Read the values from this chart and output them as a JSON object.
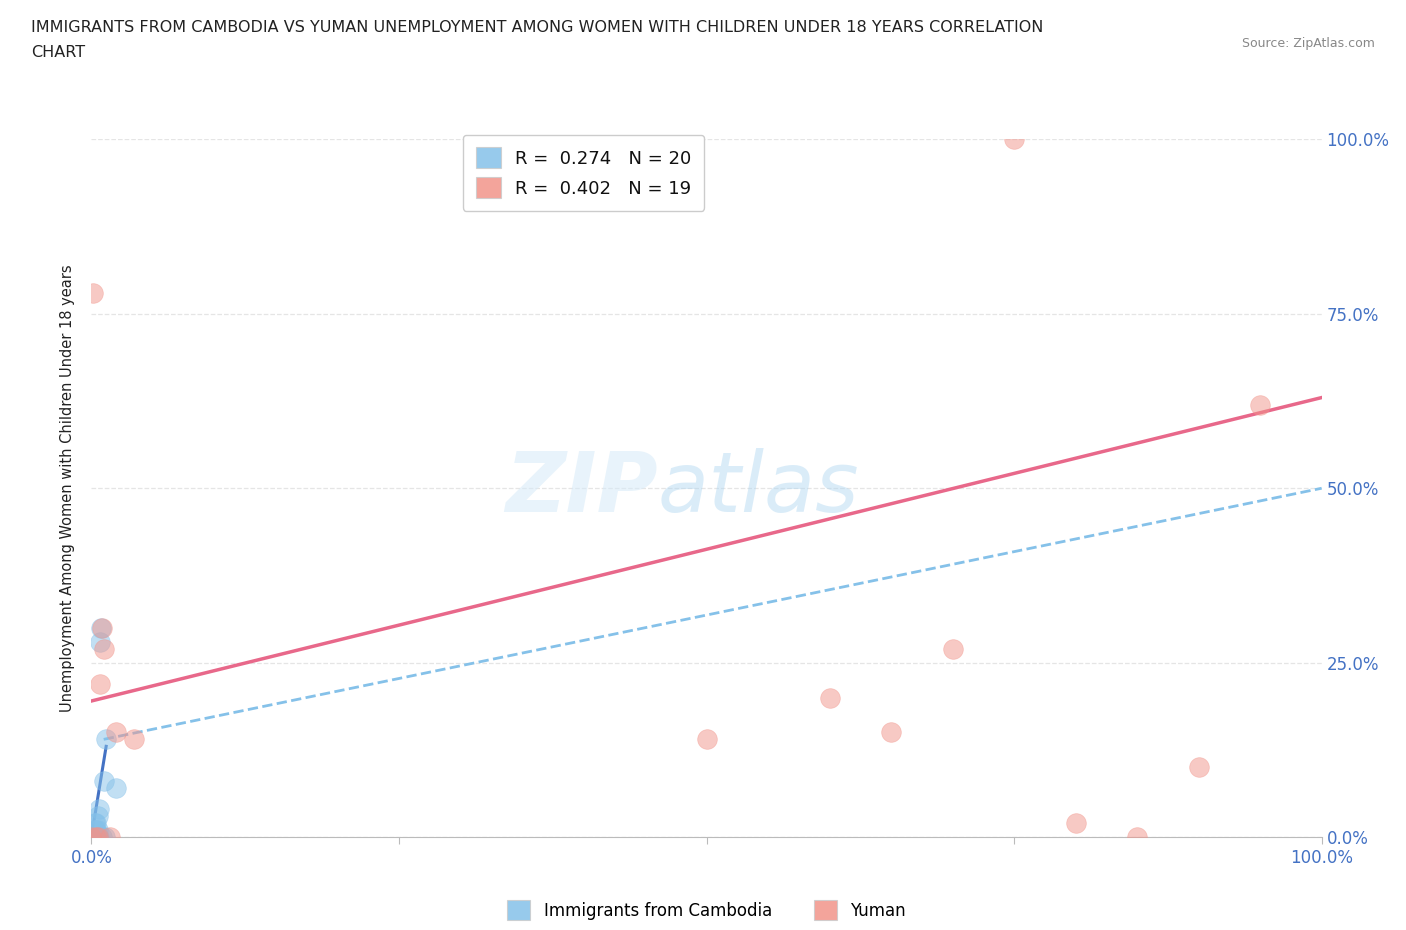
{
  "title_line1": "IMMIGRANTS FROM CAMBODIA VS YUMAN UNEMPLOYMENT AMONG WOMEN WITH CHILDREN UNDER 18 YEARS CORRELATION",
  "title_line2": "CHART",
  "source": "Source: ZipAtlas.com",
  "ylabel": "Unemployment Among Women with Children Under 18 years",
  "ytick_values": [
    0.0,
    0.25,
    0.5,
    0.75,
    1.0
  ],
  "ytick_labels": [
    "0.0%",
    "25.0%",
    "50.0%",
    "75.0%",
    "100.0%"
  ],
  "xtick_values": [
    0.0,
    0.25,
    0.5,
    0.75,
    1.0
  ],
  "xtick_labels": [
    "0.0%",
    "",
    "",
    "",
    "100.0%"
  ],
  "xlim": [
    0.0,
    1.0
  ],
  "ylim": [
    0.0,
    1.0
  ],
  "legend_label_1": "Immigrants from Cambodia",
  "legend_label_2": "Yuman",
  "R1": "0.274",
  "N1": "20",
  "R2": "0.402",
  "N2": "19",
  "color_blue": "#85C1E9",
  "color_pink": "#F1948A",
  "trendline_blue_solid_color": "#4472C4",
  "trendline_blue_dashed_color": "#85C1E9",
  "trendline_pink_color": "#E8688A",
  "grid_color": "#E5E5E5",
  "bg_color": "#FFFFFF",
  "axis_color": "#4472C4",
  "text_color": "#222222",
  "source_color": "#888888",
  "blue_points_x": [
    0.002,
    0.003,
    0.003,
    0.003,
    0.004,
    0.004,
    0.004,
    0.005,
    0.005,
    0.005,
    0.005,
    0.006,
    0.006,
    0.007,
    0.008,
    0.009,
    0.01,
    0.011,
    0.012,
    0.02
  ],
  "blue_points_y": [
    0.0,
    0.0,
    0.01,
    0.02,
    0.0,
    0.01,
    0.02,
    0.0,
    0.0,
    0.01,
    0.03,
    0.0,
    0.04,
    0.28,
    0.3,
    0.0,
    0.08,
    0.0,
    0.14,
    0.07
  ],
  "pink_points_x": [
    0.0,
    0.001,
    0.004,
    0.005,
    0.007,
    0.009,
    0.01,
    0.015,
    0.02,
    0.035,
    0.5,
    0.6,
    0.65,
    0.7,
    0.75,
    0.8,
    0.85,
    0.9,
    0.95
  ],
  "pink_points_y": [
    0.0,
    0.78,
    0.0,
    0.0,
    0.22,
    0.3,
    0.27,
    0.0,
    0.15,
    0.14,
    0.14,
    0.2,
    0.15,
    0.27,
    1.0,
    0.02,
    0.0,
    0.1,
    0.62
  ],
  "blue_solid_trend_x": [
    0.0,
    0.012
  ],
  "blue_solid_trend_y": [
    0.0,
    0.13
  ],
  "blue_dashed_trend_x": [
    0.01,
    1.0
  ],
  "blue_dashed_trend_y": [
    0.14,
    0.5
  ],
  "pink_trend_x": [
    0.0,
    1.0
  ],
  "pink_trend_y": [
    0.195,
    0.63
  ]
}
